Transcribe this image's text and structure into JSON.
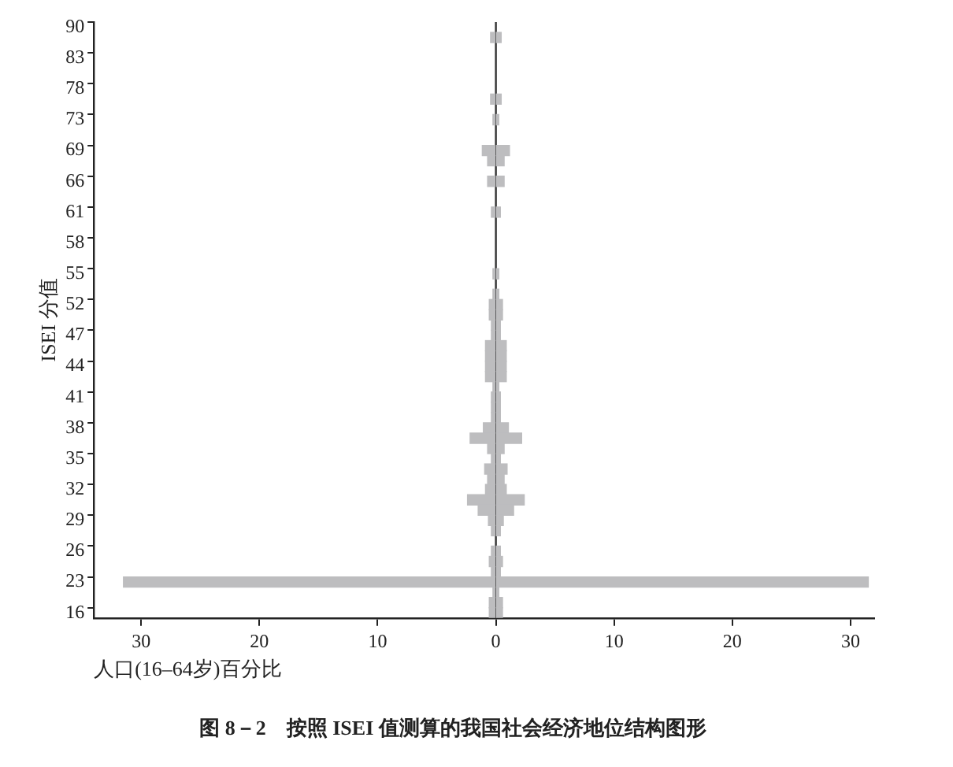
{
  "chart_data": {
    "type": "bar",
    "orientation": "horizontal",
    "stacked": true,
    "title": "图 8－2　按照 ISEI 值测算的我国社会经济地位结构图形",
    "xlabel": "人口(16–64岁)百分比",
    "ylabel": "ISEI 分值",
    "categories": [
      "90",
      null,
      null,
      "83",
      null,
      null,
      "78",
      null,
      null,
      "73",
      null,
      null,
      "69",
      null,
      null,
      "66",
      null,
      null,
      "61",
      null,
      null,
      "58",
      null,
      null,
      "55",
      null,
      null,
      "52",
      null,
      null,
      "47",
      null,
      null,
      "44",
      null,
      null,
      "41",
      null,
      null,
      "38",
      null,
      null,
      "35",
      null,
      null,
      "32",
      null,
      null,
      "29",
      null,
      null,
      "26",
      null,
      null,
      "23",
      null,
      null,
      "16"
    ],
    "series": [
      {
        "color": "#bdbdbf",
        "values": [
          null,
          -0.45,
          null,
          null,
          null,
          null,
          null,
          -0.45,
          null,
          -0.25,
          null,
          null,
          -1.15,
          -0.7,
          null,
          -0.7,
          null,
          null,
          -0.38,
          null,
          null,
          null,
          null,
          null,
          -0.25,
          null,
          -0.25,
          -0.56,
          -0.56,
          -0.38,
          -0.38,
          -0.88,
          -0.88,
          -0.88,
          -0.88,
          -0.25,
          -0.38,
          -0.38,
          -0.38,
          -1.06,
          -2.18,
          -0.7,
          -0.38,
          -0.95,
          -0.7,
          -0.88,
          -2.4,
          -1.5,
          -0.63,
          -0.38,
          null,
          -0.38,
          -0.56,
          -0.38,
          -31.5,
          -0.25,
          -0.56,
          -0.56
        ]
      },
      {
        "color": "#bdbdbf",
        "values": [
          null,
          0.45,
          null,
          null,
          null,
          null,
          null,
          0.45,
          null,
          0.25,
          null,
          null,
          1.15,
          0.7,
          null,
          0.7,
          null,
          null,
          0.38,
          null,
          null,
          null,
          null,
          null,
          0.25,
          null,
          0.25,
          0.56,
          0.56,
          0.38,
          0.38,
          0.88,
          0.88,
          0.88,
          0.88,
          0.25,
          0.38,
          0.38,
          0.38,
          1.06,
          2.18,
          0.7,
          0.38,
          0.95,
          0.7,
          0.88,
          2.4,
          1.5,
          0.63,
          0.38,
          null,
          0.38,
          0.56,
          0.38,
          31.5,
          0.25,
          0.56,
          0.56
        ]
      }
    ],
    "xlim": [
      -34,
      32
    ],
    "xticks": [
      {
        "value": -30,
        "label": "30"
      },
      {
        "value": -20,
        "label": "20"
      },
      {
        "value": -10,
        "label": "10"
      },
      0,
      10,
      20,
      30
    ],
    "ref_lines": [
      {
        "axis": "x",
        "value": 0,
        "color": "#333333"
      }
    ],
    "grid": false,
    "legend": false
  }
}
